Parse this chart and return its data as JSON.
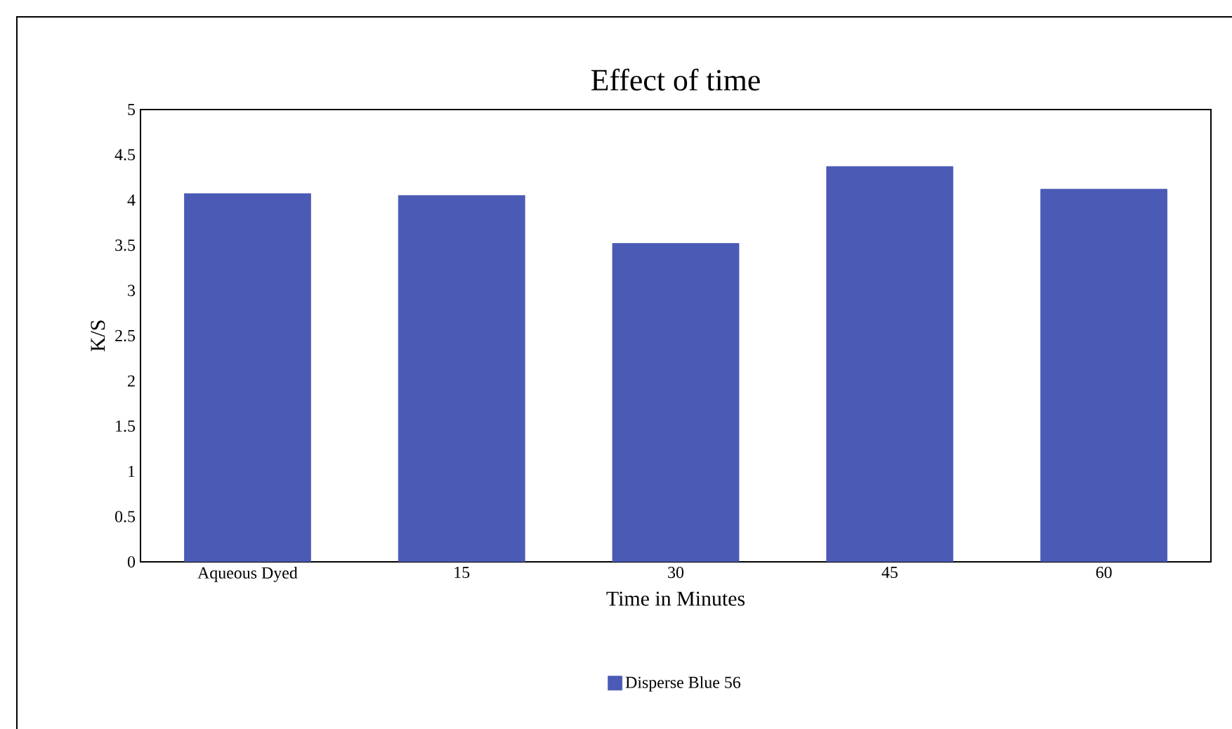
{
  "chart_data": {
    "type": "bar",
    "title": "Effect of time",
    "xlabel": "Time in Minutes",
    "ylabel": "K/S",
    "categories": [
      "Aqueous Dyed",
      "15",
      "30",
      "45",
      "60"
    ],
    "series": [
      {
        "name": "Disperse Blue 56",
        "color": "#4a5ab5",
        "values": [
          4.07,
          4.05,
          3.52,
          4.37,
          4.12
        ]
      }
    ],
    "ylim": [
      0,
      5
    ],
    "yticks": [
      0,
      0.5,
      1,
      1.5,
      2,
      2.5,
      3,
      3.5,
      4,
      4.5,
      5
    ],
    "legend": "bottom"
  }
}
